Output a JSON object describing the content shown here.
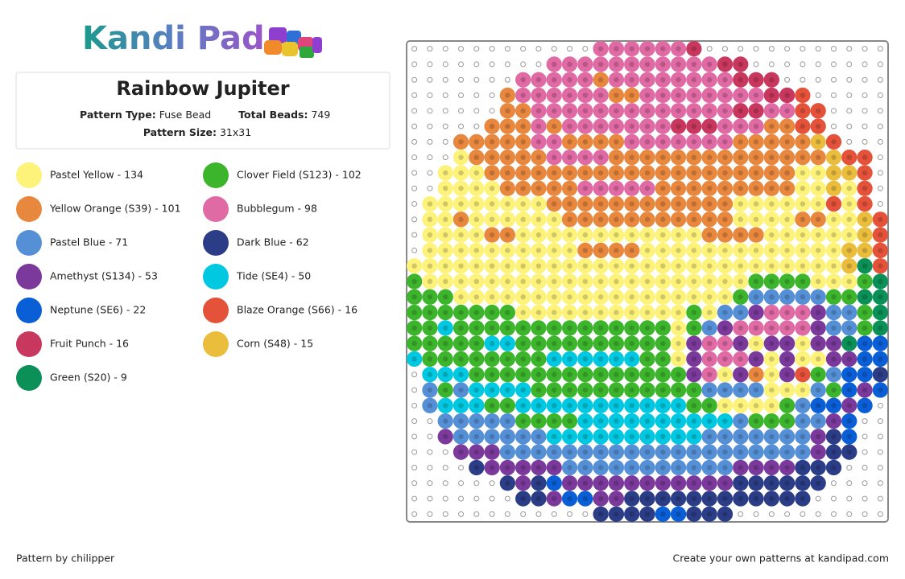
{
  "header": {
    "logo": "Kandi Pad",
    "title": "Rainbow Jupiter"
  },
  "pattern_info": [
    {
      "label": "Pattern Type:",
      "value": "Fuse Bead"
    },
    {
      "label": "Total Beads:",
      "value": 749
    },
    {
      "label": "Pattern Size:",
      "value": "31x31"
    }
  ],
  "legend": [
    {
      "label": "Pastel Yellow - 134",
      "color": "#fdf27a"
    },
    {
      "label": "Clover Field (S123) - 102",
      "color": "#3cb52c"
    },
    {
      "label": "Yellow Orange (S39) - 101",
      "color": "#e8873e"
    },
    {
      "label": "Bubblegum - 98",
      "color": "#e06aa3"
    },
    {
      "label": "Pastel Blue - 71",
      "color": "#5590d6"
    },
    {
      "label": "Dark Blue - 62",
      "color": "#2b3d86"
    },
    {
      "label": "Amethyst (S134) - 53",
      "color": "#7b3a9b"
    },
    {
      "label": "Tide (SE4) - 50",
      "color": "#00c8e0"
    },
    {
      "label": "Neptune (SE6) - 22",
      "color": "#0a5fd6"
    },
    {
      "label": "Blaze Orange (S66) - 16",
      "color": "#e4523a"
    },
    {
      "label": "Fruit Punch - 16",
      "color": "#c8375e"
    },
    {
      "label": "Corn (S48) - 15",
      "color": "#ebbd3d"
    },
    {
      "label": "Green (S20) - 9",
      "color": "#0b9057"
    }
  ],
  "footer": {
    "credit": "Pattern by chilipper",
    "promo": "Create your own patterns at kandipad.com"
  }
}
